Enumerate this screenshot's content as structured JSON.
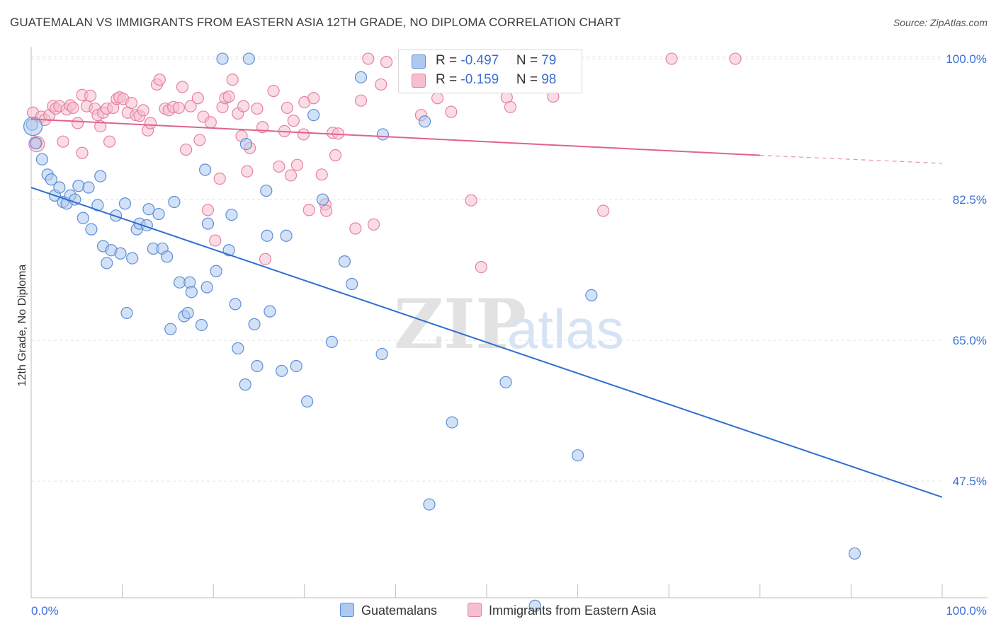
{
  "title": "GUATEMALAN VS IMMIGRANTS FROM EASTERN ASIA 12TH GRADE, NO DIPLOMA CORRELATION CHART",
  "source": "Source: ZipAtlas.com",
  "watermark": {
    "zip": "ZIP",
    "atlas": "atlas"
  },
  "colors": {
    "blue_fill": "#aec8ef",
    "blue_stroke": "#5b8fd6",
    "blue_line": "#2f6fd0",
    "pink_fill": "#f6bfd0",
    "pink_stroke": "#e8819f",
    "pink_line": "#e0638f",
    "axis_text": "#3b6fd4",
    "grid": "#e3e3e3"
  },
  "legend": {
    "rows": [
      {
        "r_label": "R = ",
        "r_value": "-0.497",
        "n_label": "N = ",
        "n_value": "79"
      },
      {
        "r_label": "R = ",
        "r_value": "-0.159",
        "n_label": "N = ",
        "n_value": "98"
      }
    ]
  },
  "chart_data": {
    "type": "scatter",
    "title": "GUATEMALAN VS IMMIGRANTS FROM EASTERN ASIA 12TH GRADE, NO DIPLOMA CORRELATION CHART",
    "xlabel": "",
    "ylabel": "12th Grade, No Diploma",
    "x_tick_labels": [
      "0.0%",
      "100.0%"
    ],
    "y_tick_labels": [
      "100.0%",
      "82.5%",
      "65.0%",
      "47.5%"
    ],
    "y_ticks": [
      100.0,
      82.5,
      65.0,
      47.5
    ],
    "xlim": [
      0,
      100
    ],
    "ylim": [
      33,
      101.5
    ],
    "grid": true,
    "legend_position": "top-center",
    "series": [
      {
        "name": "Guatemalans",
        "color": "#5b8fd6",
        "trend": {
          "x": [
            0,
            100
          ],
          "y": [
            84.0,
            45.5
          ]
        },
        "points": [
          [
            0.1,
            91.8
          ],
          [
            0.5,
            89.5
          ],
          [
            1.2,
            87.5
          ],
          [
            1.8,
            85.6
          ],
          [
            2.2,
            85.0
          ],
          [
            2.6,
            83.0
          ],
          [
            3.1,
            84.0
          ],
          [
            3.5,
            82.2
          ],
          [
            3.9,
            82.0
          ],
          [
            4.3,
            83.0
          ],
          [
            4.8,
            82.5
          ],
          [
            5.2,
            84.2
          ],
          [
            5.7,
            80.2
          ],
          [
            6.3,
            84.0
          ],
          [
            6.6,
            78.8
          ],
          [
            7.3,
            81.8
          ],
          [
            7.6,
            85.4
          ],
          [
            7.9,
            76.7
          ],
          [
            8.3,
            74.6
          ],
          [
            8.8,
            76.2
          ],
          [
            9.3,
            80.5
          ],
          [
            9.8,
            75.8
          ],
          [
            10.3,
            82.0
          ],
          [
            10.5,
            68.4
          ],
          [
            11.1,
            75.2
          ],
          [
            11.6,
            78.8
          ],
          [
            11.9,
            79.5
          ],
          [
            12.7,
            79.3
          ],
          [
            12.9,
            81.3
          ],
          [
            13.4,
            76.4
          ],
          [
            14.0,
            80.7
          ],
          [
            14.4,
            76.4
          ],
          [
            14.9,
            75.4
          ],
          [
            15.3,
            66.4
          ],
          [
            15.7,
            82.2
          ],
          [
            16.3,
            72.2
          ],
          [
            16.8,
            68.0
          ],
          [
            17.2,
            68.4
          ],
          [
            17.4,
            72.2
          ],
          [
            17.6,
            71.0
          ],
          [
            18.7,
            66.9
          ],
          [
            19.1,
            86.2
          ],
          [
            19.3,
            71.6
          ],
          [
            19.4,
            79.5
          ],
          [
            20.3,
            73.6
          ],
          [
            21.0,
            100.0
          ],
          [
            21.7,
            76.2
          ],
          [
            22.0,
            80.6
          ],
          [
            22.4,
            69.5
          ],
          [
            22.7,
            64.0
          ],
          [
            23.5,
            59.5
          ],
          [
            23.6,
            89.4
          ],
          [
            23.9,
            100.0
          ],
          [
            24.5,
            67.0
          ],
          [
            24.8,
            61.8
          ],
          [
            25.8,
            83.6
          ],
          [
            25.9,
            78.0
          ],
          [
            26.2,
            68.6
          ],
          [
            27.5,
            61.2
          ],
          [
            28.0,
            78.0
          ],
          [
            29.1,
            61.8
          ],
          [
            30.3,
            57.4
          ],
          [
            31.0,
            93.0
          ],
          [
            32.0,
            82.5
          ],
          [
            33.0,
            64.8
          ],
          [
            34.4,
            74.8
          ],
          [
            35.2,
            72.0
          ],
          [
            36.2,
            97.7
          ],
          [
            38.5,
            63.3
          ],
          [
            38.6,
            90.6
          ],
          [
            43.2,
            92.2
          ],
          [
            43.7,
            44.6
          ],
          [
            46.2,
            54.8
          ],
          [
            52.1,
            59.8
          ],
          [
            55.3,
            32.0
          ],
          [
            56.0,
            100.0
          ],
          [
            60.0,
            50.7
          ],
          [
            61.5,
            70.6
          ],
          [
            90.4,
            38.5
          ]
        ]
      },
      {
        "name": "Immigrants from Eastern Asia",
        "color": "#e8819f",
        "trend": {
          "x": [
            0,
            80
          ],
          "y": [
            92.5,
            88.0
          ],
          "dashed_to": {
            "x": 100,
            "y": 87.0
          }
        },
        "points": [
          [
            0.2,
            93.3
          ],
          [
            0.6,
            89.5
          ],
          [
            1.1,
            92.8
          ],
          [
            1.5,
            92.4
          ],
          [
            2.0,
            93.0
          ],
          [
            2.4,
            94.1
          ],
          [
            2.7,
            93.8
          ],
          [
            3.1,
            94.1
          ],
          [
            3.5,
            89.7
          ],
          [
            3.9,
            93.7
          ],
          [
            4.3,
            94.2
          ],
          [
            4.6,
            93.9
          ],
          [
            5.1,
            92.0
          ],
          [
            5.6,
            88.3
          ],
          [
            5.6,
            95.5
          ],
          [
            6.1,
            94.1
          ],
          [
            6.5,
            95.4
          ],
          [
            7.0,
            93.8
          ],
          [
            7.3,
            93.0
          ],
          [
            7.6,
            91.6
          ],
          [
            7.9,
            93.3
          ],
          [
            8.3,
            93.8
          ],
          [
            8.6,
            89.7
          ],
          [
            9.0,
            93.9
          ],
          [
            9.4,
            95.0
          ],
          [
            9.7,
            95.2
          ],
          [
            10.1,
            95.0
          ],
          [
            10.6,
            93.3
          ],
          [
            11.0,
            94.5
          ],
          [
            11.5,
            93.0
          ],
          [
            11.9,
            92.9
          ],
          [
            12.3,
            93.6
          ],
          [
            12.8,
            91.1
          ],
          [
            13.1,
            92.0
          ],
          [
            13.8,
            96.8
          ],
          [
            14.1,
            97.4
          ],
          [
            14.7,
            93.8
          ],
          [
            15.1,
            93.6
          ],
          [
            15.6,
            94.0
          ],
          [
            16.2,
            93.9
          ],
          [
            16.6,
            96.5
          ],
          [
            17.0,
            88.7
          ],
          [
            17.5,
            94.1
          ],
          [
            18.3,
            95.1
          ],
          [
            18.5,
            89.9
          ],
          [
            18.9,
            92.8
          ],
          [
            19.4,
            81.2
          ],
          [
            19.7,
            92.1
          ],
          [
            20.2,
            77.4
          ],
          [
            20.7,
            85.1
          ],
          [
            21.0,
            94.0
          ],
          [
            21.3,
            95.1
          ],
          [
            21.7,
            95.3
          ],
          [
            22.1,
            97.4
          ],
          [
            22.7,
            93.2
          ],
          [
            23.1,
            90.4
          ],
          [
            23.3,
            94.1
          ],
          [
            23.7,
            86.0
          ],
          [
            24.0,
            88.9
          ],
          [
            24.8,
            93.8
          ],
          [
            25.4,
            91.5
          ],
          [
            25.7,
            75.1
          ],
          [
            26.6,
            96.0
          ],
          [
            27.2,
            86.6
          ],
          [
            27.8,
            91.0
          ],
          [
            28.1,
            93.9
          ],
          [
            28.5,
            85.5
          ],
          [
            28.8,
            92.3
          ],
          [
            29.2,
            86.8
          ],
          [
            29.9,
            90.6
          ],
          [
            30.0,
            94.6
          ],
          [
            30.5,
            81.2
          ],
          [
            31.0,
            95.1
          ],
          [
            31.9,
            85.6
          ],
          [
            32.3,
            81.9
          ],
          [
            32.4,
            81.1
          ],
          [
            33.1,
            90.8
          ],
          [
            33.4,
            88.0
          ],
          [
            33.7,
            90.7
          ],
          [
            35.6,
            78.9
          ],
          [
            36.2,
            94.8
          ],
          [
            37.0,
            100.0
          ],
          [
            37.6,
            79.4
          ],
          [
            38.4,
            96.8
          ],
          [
            39.0,
            99.6
          ],
          [
            42.8,
            93.0
          ],
          [
            44.6,
            95.1
          ],
          [
            46.1,
            93.4
          ],
          [
            48.3,
            82.4
          ],
          [
            49.4,
            74.1
          ],
          [
            52.2,
            95.2
          ],
          [
            52.6,
            94.0
          ],
          [
            53.2,
            100.0
          ],
          [
            56.2,
            97.6
          ],
          [
            57.3,
            95.3
          ],
          [
            62.8,
            81.1
          ],
          [
            70.3,
            100.0
          ],
          [
            77.3,
            100.0
          ]
        ]
      }
    ]
  },
  "bottom_legend": [
    "Guatemalans",
    "Immigrants from Eastern Asia"
  ]
}
